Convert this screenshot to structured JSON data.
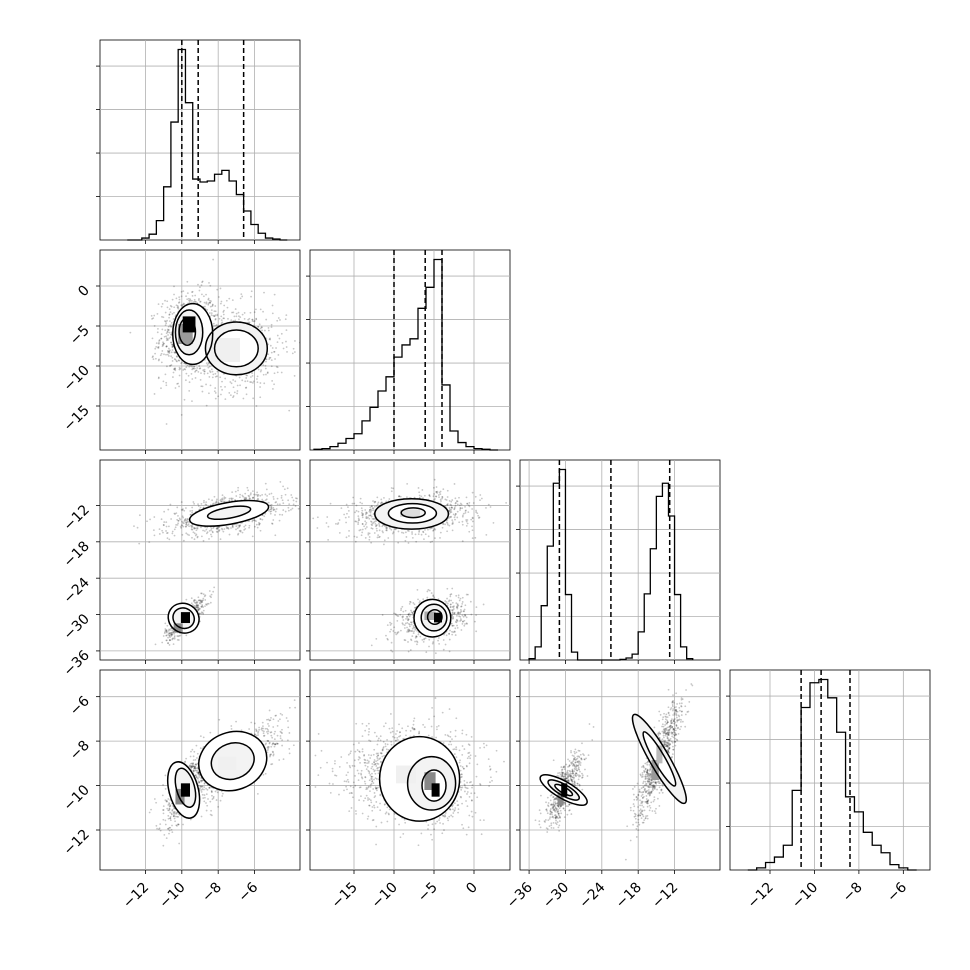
{
  "chart_data": {
    "type": "corner",
    "grid": true,
    "params": [
      {
        "range": [
          -14.5,
          -3.5
        ],
        "ticks": [
          -12,
          -10,
          -8,
          -6
        ],
        "tick_labels": [
          "−12",
          "−10",
          "−8",
          "−6"
        ],
        "quantiles": [
          -10.0,
          -9.1,
          -6.6
        ],
        "hist": {
          "edges": [
            -13.0,
            -12.6,
            -12.2,
            -11.8,
            -11.4,
            -11.0,
            -10.6,
            -10.2,
            -9.8,
            -9.4,
            -9.0,
            -8.6,
            -8.2,
            -7.8,
            -7.4,
            -7.0,
            -6.6,
            -6.2,
            -5.8,
            -5.4,
            -5.0,
            -4.6,
            -4.2
          ],
          "counts": [
            0,
            0,
            2,
            6,
            20,
            55,
            122,
            197,
            142,
            63,
            60,
            61,
            68,
            72,
            61,
            47,
            30,
            16,
            7,
            2,
            1,
            0
          ]
        }
      },
      {
        "range": [
          -20.5,
          4.5
        ],
        "ticks": [
          -15,
          -10,
          -5,
          0
        ],
        "tick_labels": [
          "−15",
          "−10",
          "−5",
          "0"
        ],
        "quantiles": [
          -10.0,
          -6.1,
          -4.0
        ],
        "hist": {
          "edges": [
            -20.0,
            -19.0,
            -18.0,
            -17.0,
            -16.0,
            -15.0,
            -14.0,
            -13.0,
            -12.0,
            -11.0,
            -10.0,
            -9.0,
            -8.0,
            -7.0,
            -6.0,
            -5.0,
            -4.0,
            -3.0,
            -2.0,
            -1.0,
            0.0,
            1.0,
            2.0,
            3.0
          ],
          "counts": [
            1,
            2,
            5,
            10,
            17,
            24,
            43,
            63,
            87,
            108,
            137,
            155,
            164,
            209,
            240,
            281,
            96,
            28,
            11,
            5,
            2,
            1,
            0
          ]
        }
      },
      {
        "range": [
          -37.5,
          -4.5
        ],
        "ticks": [
          -36,
          -30,
          -24,
          -18,
          -12
        ],
        "tick_labels": [
          "−36",
          "−30",
          "−24",
          "−18",
          "−12"
        ],
        "quantiles": [
          -31.0,
          -22.5,
          -12.8
        ],
        "hist": {
          "edges": [
            -36.0,
            -35.0,
            -34.0,
            -33.0,
            -32.0,
            -31.0,
            -30.0,
            -29.0,
            -28.0,
            -27.0,
            -26.0,
            -25.0,
            -24.0,
            -23.0,
            -22.0,
            -21.0,
            -20.0,
            -19.0,
            -18.0,
            -17.0,
            -16.0,
            -15.0,
            -14.0,
            -13.0,
            -12.0,
            -11.0,
            -10.0,
            -9.0
          ],
          "counts": [
            2,
            20,
            83,
            174,
            270,
            291,
            100,
            12,
            0,
            0,
            0,
            0,
            0,
            0,
            0,
            1,
            3,
            9,
            43,
            101,
            170,
            250,
            270,
            220,
            100,
            20,
            2,
            0
          ]
        }
      },
      {
        "range": [
          -13.8,
          -4.8
        ],
        "ticks": [
          -12,
          -10,
          -8,
          -6
        ],
        "tick_labels": [
          "−12",
          "−10",
          "−8",
          "−6"
        ],
        "quantiles": [
          -10.6,
          -9.7,
          -8.4
        ],
        "hist": {
          "edges": [
            -13.0,
            -12.6,
            -12.2,
            -11.8,
            -11.4,
            -11.0,
            -10.6,
            -10.2,
            -9.8,
            -9.4,
            -9.0,
            -8.6,
            -8.2,
            -7.8,
            -7.4,
            -7.0,
            -6.6,
            -6.2,
            -5.8,
            -5.4
          ],
          "counts": [
            0,
            2,
            7,
            12,
            23,
            74,
            151,
            174,
            177,
            160,
            128,
            68,
            54,
            35,
            23,
            16,
            5,
            2,
            0
          ]
        }
      }
    ]
  }
}
